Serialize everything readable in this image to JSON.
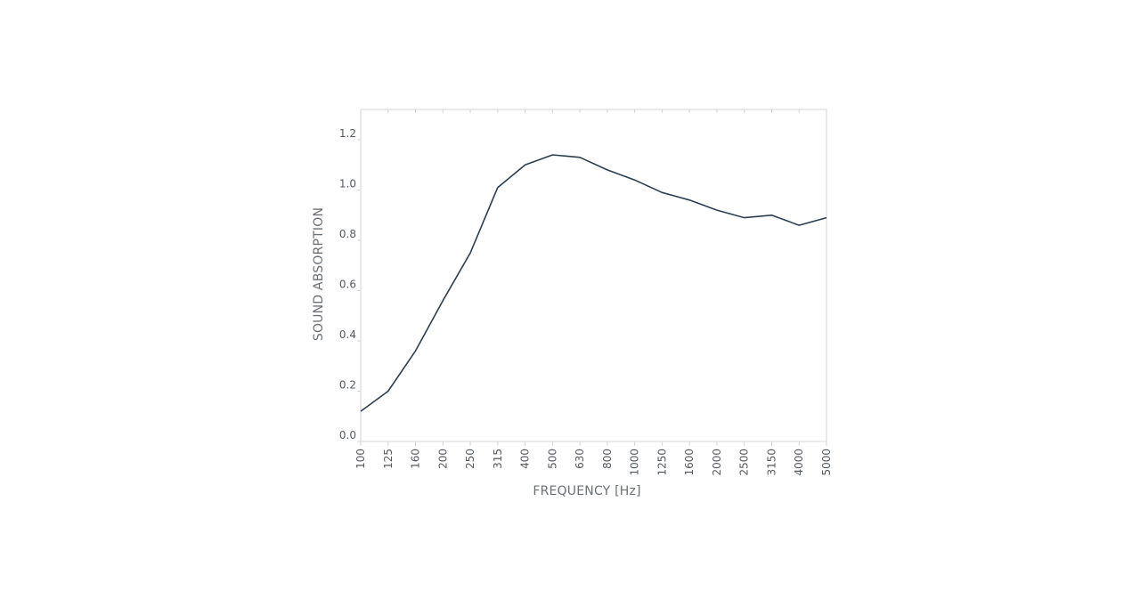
{
  "chart_data": {
    "type": "line",
    "title": "",
    "xlabel": "FREQUENCY [Hz]",
    "ylabel": "SOUND ABSORPTION",
    "categories": [
      "100",
      "125",
      "160",
      "200",
      "250",
      "315",
      "400",
      "500",
      "630",
      "800",
      "1000",
      "1250",
      "1600",
      "2000",
      "2500",
      "3150",
      "4000",
      "5000"
    ],
    "series": [
      {
        "values": [
          0.12,
          0.2,
          0.36,
          0.56,
          0.75,
          1.01,
          1.1,
          1.14,
          1.13,
          1.08,
          1.04,
          0.99,
          0.96,
          0.92,
          0.89,
          0.9,
          0.86,
          0.89
        ],
        "color": "#2c3e50"
      }
    ],
    "ylim": [
      0,
      1.3
    ],
    "yticks": [
      "0.0",
      "0.2",
      "0.4",
      "0.6",
      "0.8",
      "1.0",
      "1.2"
    ],
    "grid": false,
    "colors": {
      "line": "#2c3e50",
      "frame": "#d4d4d4",
      "text": "#555a60"
    }
  }
}
